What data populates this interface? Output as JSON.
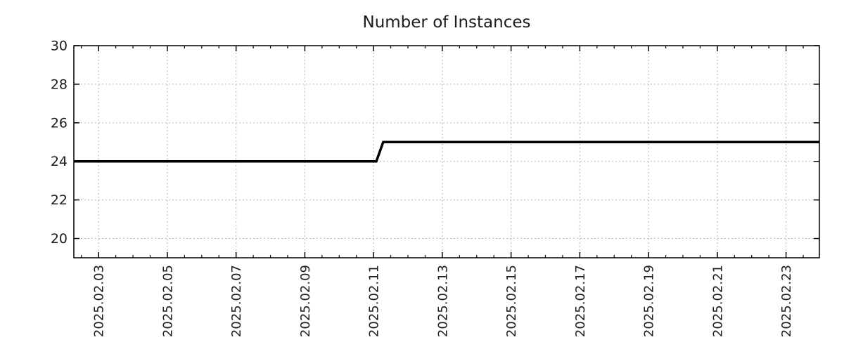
{
  "title": "Number of Instances",
  "colors": {
    "line": "#000000",
    "grid": "#b3b3b3",
    "axis": "#000000",
    "text": "#1c1c1c",
    "background": "#ffffff"
  },
  "chart_data": {
    "type": "line",
    "title": "Number of Instances",
    "xlabel": "",
    "ylabel": "",
    "grid": true,
    "legend": null,
    "x_unit": "date (2025 February, day-of-month units)",
    "x_tick_labels": [
      "2025.02.03",
      "2025.02.05",
      "2025.02.07",
      "2025.02.09",
      "2025.02.11",
      "2025.02.13",
      "2025.02.15",
      "2025.02.17",
      "2025.02.19",
      "2025.02.21",
      "2025.02.23"
    ],
    "x_tick_days": [
      3,
      5,
      7,
      9,
      11,
      13,
      15,
      17,
      19,
      21,
      23
    ],
    "x_minor_step_days": 0.5,
    "xlim_days": [
      2.28,
      23.97
    ],
    "y_tick_labels": [
      "20",
      "22",
      "24",
      "26",
      "28",
      "30"
    ],
    "y_ticks": [
      20,
      22,
      24,
      26,
      28,
      30
    ],
    "ylim": [
      19,
      30
    ],
    "series": [
      {
        "name": "instances",
        "color": "#000000",
        "width": 3.5,
        "points": [
          {
            "day": 2.28,
            "value": 24
          },
          {
            "day": 11.08,
            "value": 24
          },
          {
            "day": 11.28,
            "value": 25
          },
          {
            "day": 23.97,
            "value": 25
          }
        ],
        "summary": "24 instances until 2025.02.11, steps up to 25 instances and stays at 25 through 2025.02.23"
      }
    ]
  }
}
